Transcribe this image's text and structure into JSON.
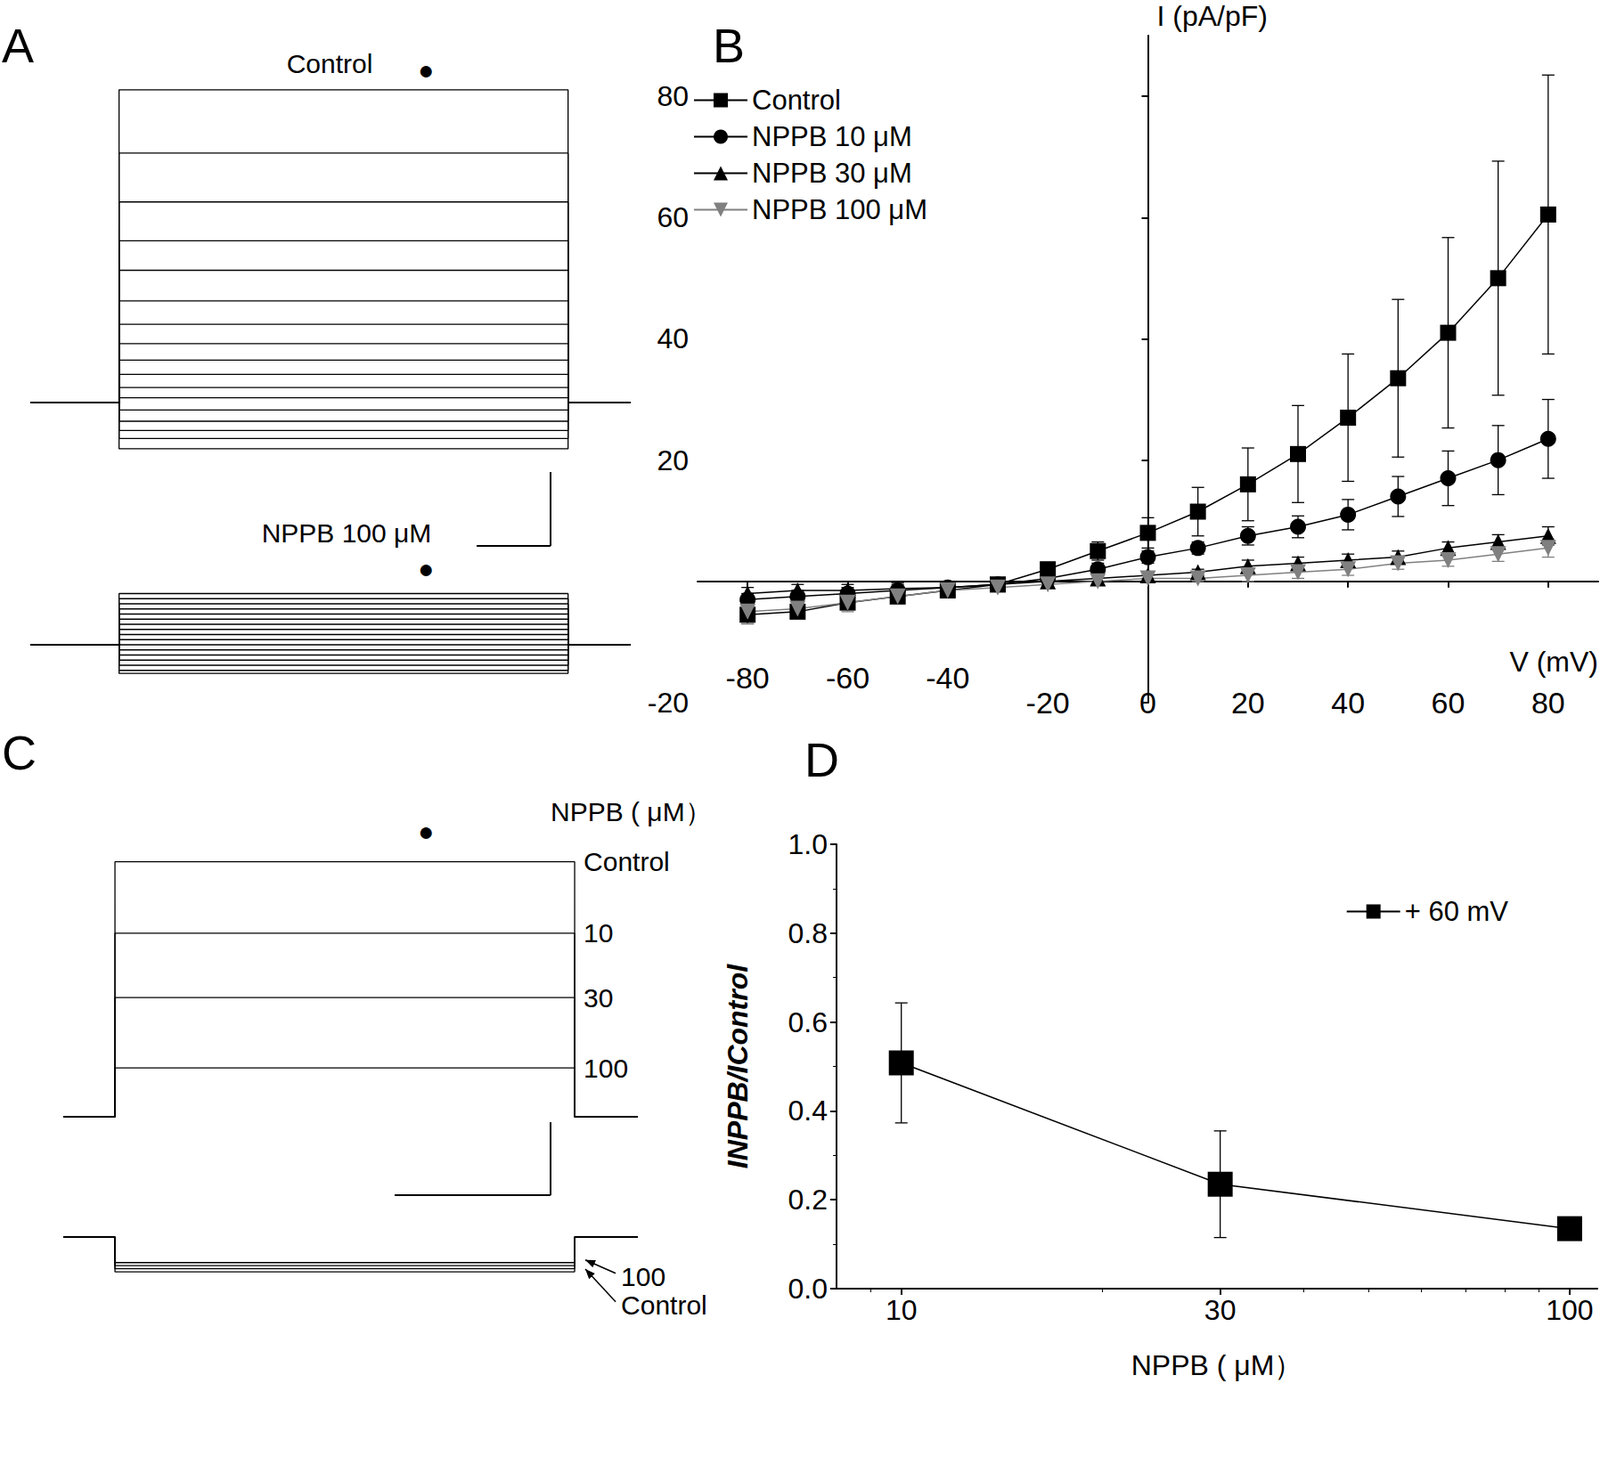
{
  "chart_data": [
    {
      "panel_label": "A",
      "type": "line",
      "title": "Control",
      "annotations": [
        "●"
      ],
      "tick_labels": false,
      "color": "#000000",
      "xlim": [
        0,
        115
      ],
      "ylim": [
        -80,
        340
      ],
      "x": [
        0,
        17,
        17,
        103,
        103,
        115
      ],
      "series": [
        {
          "values": [
            0,
            0,
            -45,
            -45,
            0,
            0
          ]
        },
        {
          "values": [
            0,
            0,
            -35,
            -35,
            0,
            0
          ]
        },
        {
          "values": [
            0,
            0,
            -27,
            -27,
            0,
            0
          ]
        },
        {
          "values": [
            0,
            0,
            -18,
            -18,
            0,
            0
          ]
        },
        {
          "values": [
            0,
            0,
            -7,
            -7,
            0,
            0
          ]
        },
        {
          "values": [
            0,
            0,
            5,
            5,
            0,
            0
          ]
        },
        {
          "values": [
            0,
            0,
            15,
            15,
            0,
            0
          ]
        },
        {
          "values": [
            0,
            0,
            28,
            28,
            0,
            0
          ]
        },
        {
          "values": [
            0,
            0,
            42,
            42,
            0,
            0
          ]
        },
        {
          "values": [
            0,
            0,
            58,
            58,
            0,
            0
          ]
        },
        {
          "values": [
            0,
            0,
            77,
            77,
            0,
            0
          ]
        },
        {
          "values": [
            0,
            0,
            100,
            100,
            0,
            0
          ]
        },
        {
          "values": [
            0,
            0,
            130,
            130,
            0,
            0
          ]
        },
        {
          "values": [
            0,
            0,
            159,
            159,
            0,
            0
          ]
        },
        {
          "values": [
            0,
            0,
            197,
            197,
            0,
            0
          ]
        },
        {
          "values": [
            0,
            0,
            245,
            245,
            0,
            0
          ]
        },
        {
          "values": [
            0,
            0,
            307,
            307,
            0,
            0
          ]
        }
      ]
    },
    {
      "type": "line",
      "title": "NPPB 100 μM",
      "annotations": [
        "●"
      ],
      "tick_labels": false,
      "color": "#000000",
      "xlim": [
        0,
        115
      ],
      "ylim": [
        -60,
        80
      ],
      "x": [
        0,
        17,
        17,
        103,
        103,
        115
      ],
      "series": [
        {
          "values": [
            0,
            0,
            -28,
            -28,
            0,
            0
          ]
        },
        {
          "values": [
            0,
            0,
            -25,
            -25,
            0,
            0
          ]
        },
        {
          "values": [
            0,
            0,
            -20,
            -20,
            0,
            0
          ]
        },
        {
          "values": [
            0,
            0,
            -15,
            -15,
            0,
            0
          ]
        },
        {
          "values": [
            0,
            0,
            -10,
            -10,
            0,
            0
          ]
        },
        {
          "values": [
            0,
            0,
            -5,
            -5,
            0,
            0
          ]
        },
        {
          "values": [
            0,
            0,
            0,
            0,
            0,
            0
          ]
        },
        {
          "values": [
            0,
            0,
            5,
            5,
            0,
            0
          ]
        },
        {
          "values": [
            0,
            0,
            10,
            10,
            0,
            0
          ]
        },
        {
          "values": [
            0,
            0,
            15,
            15,
            0,
            0
          ]
        },
        {
          "values": [
            0,
            0,
            20,
            20,
            0,
            0
          ]
        },
        {
          "values": [
            0,
            0,
            25,
            25,
            0,
            0
          ]
        },
        {
          "values": [
            0,
            0,
            30,
            30,
            0,
            0
          ]
        },
        {
          "values": [
            0,
            0,
            35,
            35,
            0,
            0
          ]
        },
        {
          "values": [
            0,
            0,
            40,
            40,
            0,
            0
          ]
        },
        {
          "values": [
            0,
            0,
            45,
            45,
            0,
            0
          ]
        },
        {
          "values": [
            0,
            0,
            50,
            50,
            0,
            0
          ]
        }
      ]
    },
    {
      "panel_label": "B",
      "type": "line",
      "x_label": "V (mV)",
      "y_label": "I (pA/pF)",
      "legend": "top-left",
      "xlim": [
        -90,
        90
      ],
      "xticks": [
        -80,
        -60,
        -40,
        -20,
        0,
        20,
        40,
        60,
        80
      ],
      "ylim": [
        -20,
        90
      ],
      "yticks": [
        -20,
        20,
        40,
        60,
        80
      ],
      "x": [
        -80,
        -70,
        -60,
        -50,
        -40,
        -30,
        -20,
        -10,
        0,
        10,
        20,
        30,
        40,
        50,
        60,
        70,
        80
      ],
      "series": [
        {
          "name": "Control",
          "color": "#000000",
          "marker": "square",
          "values": [
            -5.5,
            -5,
            -3.5,
            -2.5,
            -1.5,
            -0.5,
            2,
            5,
            8,
            11.5,
            16,
            21,
            27,
            33.5,
            41,
            50,
            60.5
          ],
          "errors": [
            1.5,
            1,
            1,
            1,
            1,
            0.5,
            1,
            1.5,
            2.5,
            4,
            6,
            8,
            10.5,
            13,
            15.7,
            19.3,
            23
          ]
        },
        {
          "name": "NPPB 10 μM",
          "color": "#000000",
          "marker": "circle",
          "values": [
            -3,
            -2.5,
            -2,
            -1.5,
            -1,
            -0.5,
            0.5,
            2,
            4,
            5.5,
            7.5,
            9,
            11,
            14,
            17,
            20,
            23.5
          ],
          "errors": [
            1,
            1,
            1,
            1,
            1,
            0.5,
            0.5,
            1,
            1,
            1,
            1.5,
            1.8,
            2.5,
            3.3,
            4.5,
            5.7,
            6.5
          ]
        },
        {
          "name": "NPPB 30 μM",
          "color": "#000000",
          "marker": "triangle",
          "values": [
            -2,
            -1.5,
            -1.5,
            -1.2,
            -1,
            -0.5,
            0,
            0.5,
            1,
            1.5,
            2.5,
            3,
            3.5,
            4,
            5.5,
            6.5,
            7.5
          ],
          "errors": [
            1,
            1,
            1,
            1,
            1,
            0.5,
            0.5,
            0.5,
            0.5,
            0.5,
            1,
            1,
            1,
            1,
            1,
            1.2,
            1.5
          ]
        },
        {
          "name": "NPPB 100 μM",
          "color": "#808080",
          "marker": "triangle-down",
          "values": [
            -5,
            -4.5,
            -3.5,
            -2.5,
            -1.5,
            -1,
            -0.5,
            0,
            0.5,
            0.5,
            1,
            1.5,
            2,
            3,
            3.5,
            4.5,
            5.5
          ],
          "errors": [
            2,
            1.5,
            1.5,
            1,
            1,
            0.5,
            0.5,
            0.5,
            0.5,
            0.5,
            1,
            1,
            1,
            1,
            1,
            1.2,
            1.5
          ]
        }
      ]
    },
    {
      "panel_label": "C",
      "type": "line",
      "title": "NPPB ( μM）",
      "annotations": [
        "●"
      ],
      "tick_labels": false,
      "color": "#000000",
      "xlim": [
        0,
        100
      ],
      "ylim": [
        -40,
        330
      ],
      "x": [
        0,
        9,
        9,
        89,
        89,
        100
      ],
      "series": [
        {
          "name": "Control",
          "values": [
            0,
            0,
            250,
            250,
            0,
            0
          ]
        },
        {
          "name": "10",
          "values": [
            0,
            0,
            180,
            180,
            0,
            0
          ]
        },
        {
          "name": "30",
          "values": [
            0,
            0,
            117,
            117,
            0,
            0
          ]
        },
        {
          "name": "100",
          "values": [
            0,
            0,
            48,
            48,
            0,
            0
          ]
        }
      ]
    },
    {
      "type": "line",
      "tick_labels": false,
      "color": "#000000",
      "xlim": [
        0,
        100
      ],
      "ylim": [
        -60,
        20
      ],
      "x": [
        0,
        9,
        9,
        89,
        89,
        100
      ],
      "series": [
        {
          "name": "100",
          "values": [
            0,
            0,
            -25,
            -25,
            0,
            0
          ]
        },
        {
          "name": "Control",
          "values": [
            0,
            0,
            -34,
            -34,
            0,
            0
          ]
        },
        {
          "values": [
            0,
            0,
            -31,
            -31,
            0,
            0
          ]
        },
        {
          "values": [
            0,
            0,
            -28,
            -28,
            0,
            0
          ]
        }
      ]
    },
    {
      "panel_label": "D",
      "type": "line",
      "log": "x",
      "x_label": "NPPB ( μM）",
      "y_label": "INPPB/IControl",
      "legend": "top-right",
      "xlim": [
        8,
        110
      ],
      "xticks": [
        10,
        30,
        100
      ],
      "ylim": [
        0,
        1
      ],
      "yticks": [
        {
          "value": 0,
          "label": "0.0"
        },
        0.2,
        0.4,
        0.6,
        0.8,
        {
          "value": 1,
          "label": "1.0"
        }
      ],
      "x": [
        10,
        30,
        100
      ],
      "series": [
        {
          "name": "+ 60 mV",
          "color": "#000000",
          "marker": "square",
          "values": [
            0.508,
            0.235,
            0.135
          ],
          "errors": [
            0.135,
            0.12,
            0.01
          ]
        }
      ]
    }
  ]
}
